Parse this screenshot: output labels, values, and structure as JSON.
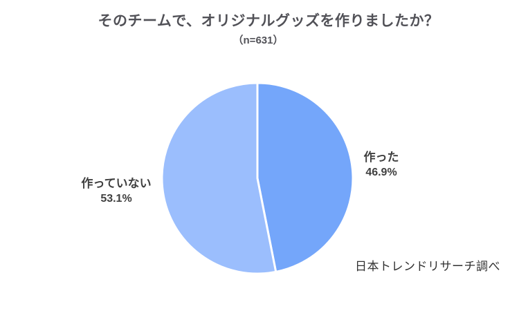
{
  "chart_data": {
    "type": "pie",
    "title": "そのチームで、オリジナルグッズを作りましたか？",
    "subtitle": "（n=631）",
    "sample_size_text": "n=631",
    "categories": [
      "作った",
      "作っていない"
    ],
    "values": [
      46.9,
      53.1
    ],
    "unit": "%",
    "slices": [
      {
        "label": "作った",
        "value": 46.9,
        "value_text": "46.9%",
        "color": "#74A6FA"
      },
      {
        "label": "作っていない",
        "value": 53.1,
        "value_text": "53.1%",
        "color": "#9BBEFD"
      }
    ],
    "start_angle_deg": 0,
    "direction": "clockwise",
    "slice_border_color": "#FFFFFF",
    "label_color": "#3F3F3F",
    "title_color": "#515157",
    "legend": "none",
    "annotation": "日本トレンドリサーチ調べ"
  }
}
